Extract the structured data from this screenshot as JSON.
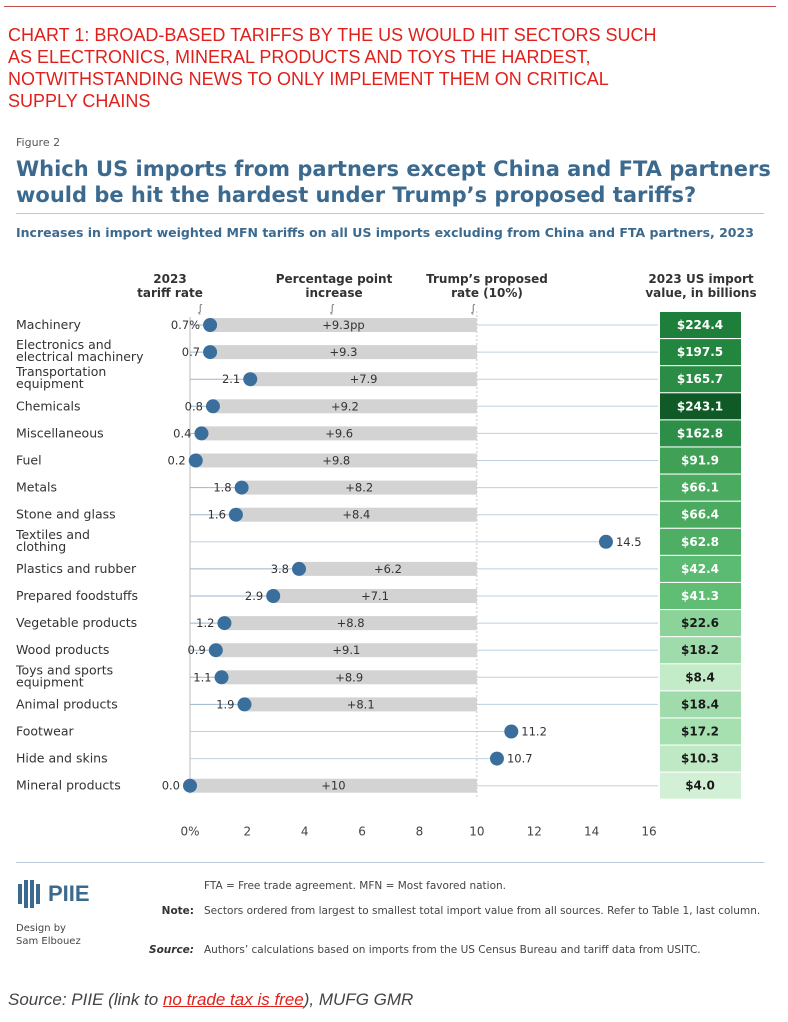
{
  "header_red": "Chart 1: Broad-based tariffs by the US would hit sectors such\nas electronics, mineral products and toys the hardest,\nnotwithstanding news to only implement them on critical\nsupply chains",
  "figure_label": "Figure 2",
  "figure_title": "Which US imports from partners except China and FTA partners\nwould be hit the hardest under Trump’s proposed tariffs?",
  "subtitle": "Increases in import weighted MFN tariffs on all US imports excluding from China and FTA partners, 2023",
  "column_headers": {
    "tariff_rate": "2023\ntariff rate",
    "pp_increase": "Percentage point\nincrease",
    "proposed": "Trump’s proposed\nrate (10%)",
    "import_value": "2023 US import\nvalue, in billions"
  },
  "chart_data": {
    "type": "bar",
    "subtype": "dot-range",
    "xlim": [
      0,
      16
    ],
    "xticks": [
      "0%",
      "2",
      "4",
      "6",
      "8",
      "10",
      "12",
      "14",
      "16"
    ],
    "tick_values": [
      0,
      2,
      4,
      6,
      8,
      10,
      12,
      14,
      16
    ],
    "proposed_rate": 10,
    "rows": [
      {
        "sector": "Machinery",
        "rate": 0.7,
        "rate_label": "0.7%",
        "inc_label": "+9.3pp",
        "value": "$224.4",
        "color": "#1e7f3a"
      },
      {
        "sector": "Electronics and\nelectrical machinery",
        "rate": 0.7,
        "rate_label": "0.7",
        "inc_label": "+9.3",
        "value": "$197.5",
        "color": "#23863f"
      },
      {
        "sector": "Transportation\nequipment",
        "rate": 2.1,
        "rate_label": "2.1",
        "inc_label": "+7.9",
        "value": "$165.7",
        "color": "#2a8c45"
      },
      {
        "sector": "Chemicals",
        "rate": 0.8,
        "rate_label": "0.8",
        "inc_label": "+9.2",
        "value": "$243.1",
        "color": "#0f5a27"
      },
      {
        "sector": "Miscellaneous",
        "rate": 0.4,
        "rate_label": "0.4",
        "inc_label": "+9.6",
        "value": "$162.8",
        "color": "#2d8e47"
      },
      {
        "sector": "Fuel",
        "rate": 0.2,
        "rate_label": "0.2",
        "inc_label": "+9.8",
        "value": "$91.9",
        "color": "#3fa056"
      },
      {
        "sector": "Metals",
        "rate": 1.8,
        "rate_label": "1.8",
        "inc_label": "+8.2",
        "value": "$66.1",
        "color": "#4aab60"
      },
      {
        "sector": "Stone and glass",
        "rate": 1.6,
        "rate_label": "1.6",
        "inc_label": "+8.4",
        "value": "$66.4",
        "color": "#4aab60"
      },
      {
        "sector": "Textiles and\nclothing",
        "rate": 14.5,
        "rate_label": "14.5",
        "inc_label": "",
        "value": "$62.8",
        "color": "#4eae64"
      },
      {
        "sector": "Plastics and rubber",
        "rate": 3.8,
        "rate_label": "3.8",
        "inc_label": "+6.2",
        "value": "$42.4",
        "color": "#5cbb72"
      },
      {
        "sector": "Prepared foodstuffs",
        "rate": 2.9,
        "rate_label": "2.9",
        "inc_label": "+7.1",
        "value": "$41.3",
        "color": "#5fbd74"
      },
      {
        "sector": "Vegetable products",
        "rate": 1.2,
        "rate_label": "1.2",
        "inc_label": "+8.8",
        "value": "$22.6",
        "color": "#8cd39a"
      },
      {
        "sector": "Wood products",
        "rate": 0.9,
        "rate_label": "0.9",
        "inc_label": "+9.1",
        "value": "$18.2",
        "color": "#a0dcab"
      },
      {
        "sector": "Toys and sports\nequipment",
        "rate": 1.1,
        "rate_label": "1.1",
        "inc_label": "+8.9",
        "value": "$8.4",
        "color": "#c3ebc8"
      },
      {
        "sector": "Animal products",
        "rate": 1.9,
        "rate_label": "1.9",
        "inc_label": "+8.1",
        "value": "$18.4",
        "color": "#a0dcab"
      },
      {
        "sector": "Footwear",
        "rate": 11.2,
        "rate_label": "11.2",
        "inc_label": "",
        "value": "$17.2",
        "color": "#a6dfb0"
      },
      {
        "sector": "Hide and skins",
        "rate": 10.7,
        "rate_label": "10.7",
        "inc_label": "",
        "value": "$10.3",
        "color": "#bfe9c5"
      },
      {
        "sector": "Mineral products",
        "rate": 0.0,
        "rate_label": "0.0",
        "inc_label": "+10",
        "value": "$4.0",
        "color": "#d2f0d6"
      }
    ],
    "colors": {
      "dot": "#3a6e9c",
      "bar": "#d3d3d3",
      "line": "#3a6e9c",
      "label": "#333333"
    }
  },
  "footer": {
    "logo_text": "PIIE",
    "designer": "Design by\nSam Elbouez",
    "fta_note": "FTA = Free trade agreement. MFN = Most favored nation.",
    "note_label": "Note:",
    "note_text": "Sectors ordered from largest to smallest total import value from all sources. Refer to Table 1, last column.",
    "source_label": "Source:",
    "source_text": "Authors’ calculations based on imports from the US Census Bureau and tariff data from USITC."
  },
  "source_line": {
    "prefix": "Source: PIIE (link to ",
    "link": "no trade tax is free",
    "suffix": "), MUFG GMR"
  }
}
